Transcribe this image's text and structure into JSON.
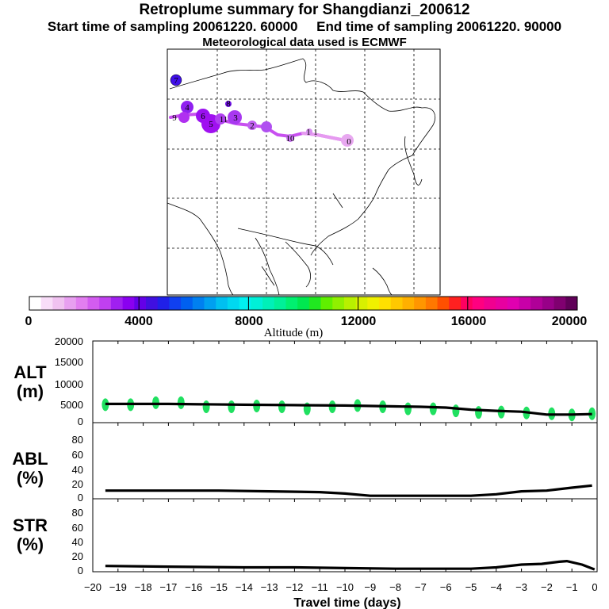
{
  "header": {
    "title": "Retroplume summary for Shangdianzi_200612",
    "sampling": "Start time of sampling 20061220. 60000     End time of sampling 20061220. 90000",
    "met": "Meteorological data used is ECMWF"
  },
  "colorbar": {
    "label": "Altitude (m)",
    "ticks": [
      "0",
      "4000",
      "8000",
      "12000",
      "16000",
      "20000"
    ],
    "colors": [
      "#ffffff",
      "#f8ddf8",
      "#f0c2f0",
      "#e8a0f0",
      "#e27ef0",
      "#d35cf0",
      "#c040f0",
      "#a020f0",
      "#8a00f0",
      "#6400e8",
      "#4010e0",
      "#2020e8",
      "#1040f0",
      "#0060f0",
      "#0080f0",
      "#00a0f0",
      "#00c0f0",
      "#00d8f0",
      "#00f0f0",
      "#00f0d8",
      "#00f0b8",
      "#00f098",
      "#00f070",
      "#00e850",
      "#20e820",
      "#60f000",
      "#90f000",
      "#b8f000",
      "#d8f000",
      "#f0f000",
      "#ffe000",
      "#ffc800",
      "#ffb000",
      "#ff9600",
      "#ff7800",
      "#ff5000",
      "#ff2020",
      "#ff0060",
      "#ff0080",
      "#f00090",
      "#e800a0",
      "#e000b0",
      "#c800a8",
      "#b00098",
      "#980088",
      "#800070",
      "#600058"
    ]
  },
  "trajectory": {
    "labels": [
      "0",
      "1",
      "1",
      "2",
      "3",
      "4",
      "5",
      "6",
      "7",
      "8",
      "9",
      "10",
      "11"
    ]
  },
  "panels": {
    "alt": {
      "label_top": "ALT",
      "label_bottom": "(m)",
      "ticks": [
        "0",
        "5000",
        "10000",
        "15000",
        "20000"
      ]
    },
    "abl": {
      "label_top": "ABL",
      "label_bottom": "(%)",
      "ticks": [
        "0",
        "20",
        "40",
        "60",
        "80"
      ]
    },
    "str": {
      "label_top": "STR",
      "label_bottom": "(%)",
      "ticks": [
        "0",
        "20",
        "40",
        "60",
        "80"
      ]
    }
  },
  "xaxis": {
    "label": "Travel time (days)",
    "ticks": [
      "−20",
      "−19",
      "−18",
      "−17",
      "−16",
      "−15",
      "−14",
      "−13",
      "−12",
      "−11",
      "−10",
      "−9",
      "−8",
      "−7",
      "−6",
      "−5",
      "−4",
      "−3",
      "−2",
      "−1",
      "0"
    ]
  },
  "chart_data": {
    "type": "line",
    "title": "Retroplume summary for Shangdianzi_200612",
    "xlabel": "Travel time (days)",
    "xlim": [
      -20,
      0
    ],
    "series": [
      {
        "name": "ALT",
        "ylabel": "ALT (m)",
        "ylim": [
          0,
          20000
        ],
        "x": [
          -19.5,
          -17,
          -14,
          -12,
          -10,
          -8,
          -7,
          -6,
          -5,
          -4,
          -3,
          -2,
          -1,
          -0.2
        ],
        "values": [
          4200,
          4200,
          4000,
          3900,
          3800,
          3600,
          3500,
          3300,
          2800,
          2500,
          2300,
          1600,
          1600,
          1700
        ]
      },
      {
        "name": "ABL",
        "ylabel": "ABL (%)",
        "ylim": [
          0,
          100
        ],
        "x": [
          -19.5,
          -17,
          -15,
          -13,
          -11,
          -10,
          -9,
          -7,
          -6,
          -5,
          -4,
          -3,
          -2,
          -1,
          -0.2
        ],
        "values": [
          9,
          9,
          9,
          8,
          7,
          5,
          2,
          2,
          2,
          2,
          4,
          8,
          9,
          13,
          16
        ]
      },
      {
        "name": "STR",
        "ylabel": "STR (%)",
        "ylim": [
          0,
          100
        ],
        "x": [
          -19.5,
          -17,
          -14,
          -12,
          -10,
          -8,
          -6,
          -5,
          -4,
          -3,
          -2.2,
          -1.5,
          -1.2,
          -0.6,
          -0.1
        ],
        "values": [
          6,
          5,
          4,
          4,
          3,
          2,
          2,
          2,
          4,
          8,
          9,
          12,
          13,
          8,
          1
        ]
      }
    ],
    "alt_markers": {
      "x": [
        -19.5,
        -18.5,
        -17.5,
        -16.5,
        -15.5,
        -14.5,
        -13.5,
        -12.5,
        -11.5,
        -10.5,
        -9.5,
        -8.5,
        -7.5,
        -6.5,
        -5.6,
        -4.7,
        -3.8,
        -2.8,
        -1.8,
        -1.0,
        -0.2
      ],
      "values": [
        4000,
        4000,
        4500,
        4500,
        3500,
        3500,
        3700,
        3500,
        3000,
        3500,
        3800,
        3500,
        3000,
        3000,
        2500,
        2100,
        2200,
        2000,
        1800,
        1500,
        1800
      ],
      "color": "#20e060"
    }
  }
}
